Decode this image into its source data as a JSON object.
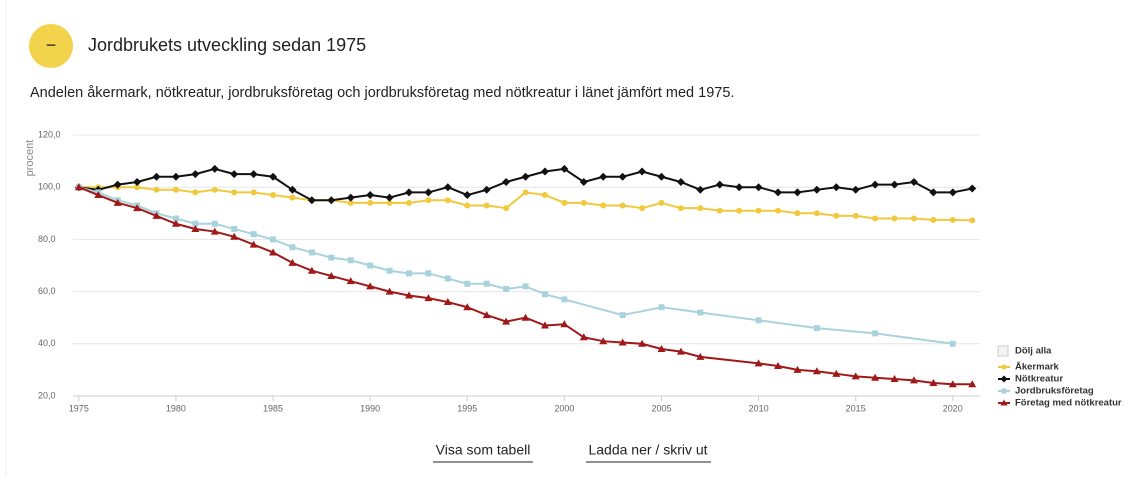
{
  "toggle_icon": "−",
  "links": [
    "Visa som tabell",
    "Ladda ner / skriv ut"
  ],
  "chart_data": {
    "type": "line",
    "title": "Jordbrukets utveckling sedan 1975",
    "subtitle": "Andelen åkermark, nötkreatur, jordbruksföretag och jordbruksföretag med nötkreatur i länet jämfört med 1975.",
    "ylabel": "procent",
    "xlim": [
      1974.7,
      2021.4
    ],
    "xticks": [
      1975,
      1980,
      1985,
      1990,
      1995,
      2000,
      2005,
      2010,
      2015,
      2020
    ],
    "ylim": [
      20,
      120
    ],
    "yticks": [
      {
        "value": 20,
        "label": "20,0"
      },
      {
        "value": 40,
        "label": "40,0"
      },
      {
        "value": 60,
        "label": "60,0"
      },
      {
        "value": 80,
        "label": "80,0"
      },
      {
        "value": 100,
        "label": "100,0"
      },
      {
        "value": 120,
        "label": "120,0"
      }
    ],
    "grid": true,
    "legend": "bottom-right",
    "legend_toggle": "Dölj alla",
    "series": [
      {
        "name": "Åkermark",
        "color": "#f0c93f",
        "marker": "circle",
        "x": [
          1975,
          1976,
          1977,
          1978,
          1979,
          1980,
          1981,
          1982,
          1983,
          1984,
          1985,
          1986,
          1987,
          1988,
          1989,
          1990,
          1991,
          1992,
          1993,
          1994,
          1995,
          1996,
          1997,
          1998,
          1999,
          2000,
          2001,
          2002,
          2003,
          2004,
          2005,
          2006,
          2007,
          2008,
          2009,
          2010,
          2011,
          2012,
          2013,
          2014,
          2015,
          2016,
          2017,
          2018,
          2019,
          2020,
          2021
        ],
        "values": [
          100,
          100,
          100,
          100,
          99,
          99,
          98,
          99,
          98,
          98,
          97,
          96,
          95,
          95,
          94,
          94,
          94,
          94,
          95,
          95,
          93,
          93,
          92,
          98,
          97,
          94,
          94,
          93,
          93,
          92,
          94,
          92,
          92,
          91,
          91,
          91,
          91,
          90,
          90,
          89,
          89,
          88,
          88,
          88,
          87.5,
          87.5,
          87.3
        ]
      },
      {
        "name": "Nötkreatur",
        "color": "#111111",
        "marker": "diamond",
        "x": [
          1975,
          1976,
          1977,
          1978,
          1979,
          1980,
          1981,
          1982,
          1983,
          1984,
          1985,
          1986,
          1987,
          1988,
          1989,
          1990,
          1991,
          1992,
          1993,
          1994,
          1995,
          1996,
          1997,
          1998,
          1999,
          2000,
          2001,
          2002,
          2003,
          2004,
          2005,
          2006,
          2007,
          2008,
          2009,
          2010,
          2011,
          2012,
          2013,
          2014,
          2015,
          2016,
          2017,
          2018,
          2019,
          2020,
          2021
        ],
        "values": [
          100,
          99,
          101,
          102,
          104,
          104,
          105,
          107,
          105,
          105,
          104,
          99,
          95,
          95,
          96,
          97,
          96,
          98,
          98,
          100,
          97,
          99,
          102,
          104,
          106,
          107,
          102,
          104,
          104,
          106,
          104,
          102,
          99,
          101,
          100,
          100,
          98,
          98,
          99,
          100,
          99,
          101,
          101,
          102,
          98,
          98,
          99.5
        ]
      },
      {
        "name": "Jordbruksföretag",
        "color": "#a9d3dc",
        "marker": "square",
        "x": [
          1975,
          1976,
          1977,
          1978,
          1979,
          1980,
          1981,
          1982,
          1983,
          1984,
          1985,
          1986,
          1987,
          1988,
          1989,
          1990,
          1991,
          1992,
          1993,
          1994,
          1995,
          1996,
          1997,
          1998,
          1999,
          2000,
          2003,
          2005,
          2007,
          2010,
          2013,
          2016,
          2020
        ],
        "values": [
          100,
          98,
          95,
          93,
          90,
          88,
          86,
          86,
          84,
          82,
          80,
          77,
          75,
          73,
          72,
          70,
          68,
          67,
          67,
          65,
          63,
          63,
          61,
          62,
          59,
          57,
          51,
          54,
          52,
          49,
          46,
          44,
          40
        ]
      },
      {
        "name": "Företag med nötkreatur",
        "color": "#a01818",
        "marker": "triangle",
        "x": [
          1975,
          1976,
          1977,
          1978,
          1979,
          1980,
          1981,
          1982,
          1983,
          1984,
          1985,
          1986,
          1987,
          1988,
          1989,
          1990,
          1991,
          1992,
          1993,
          1994,
          1995,
          1996,
          1997,
          1998,
          1999,
          2000,
          2001,
          2002,
          2003,
          2004,
          2005,
          2006,
          2007,
          2010,
          2011,
          2012,
          2013,
          2014,
          2015,
          2016,
          2017,
          2018,
          2019,
          2020,
          2021
        ],
        "values": [
          100,
          97,
          94,
          92,
          89,
          86,
          84,
          83,
          81,
          78,
          75,
          71,
          68,
          66,
          64,
          62,
          60,
          58.5,
          57.5,
          56,
          54,
          51,
          48.5,
          50,
          47,
          47.5,
          42.5,
          41,
          40.5,
          40,
          38,
          37,
          35,
          32.5,
          31.5,
          30,
          29.5,
          28.5,
          27.5,
          27,
          26.5,
          26,
          25,
          24.5,
          24.5
        ]
      }
    ]
  }
}
